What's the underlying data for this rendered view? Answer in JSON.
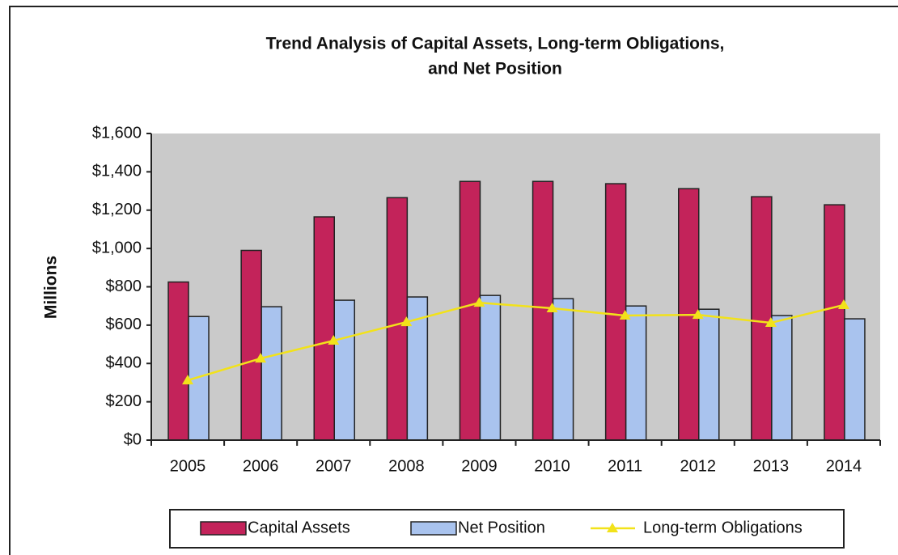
{
  "chart_data": {
    "type": "bar_line",
    "title": [
      "Trend Analysis of Capital Assets,  Long-term Obligations,",
      "and Net Position"
    ],
    "y_label": "Millions",
    "categories": [
      "2005",
      "2006",
      "2007",
      "2008",
      "2009",
      "2010",
      "2011",
      "2012",
      "2013",
      "2014"
    ],
    "series": [
      {
        "name": "Capital Assets",
        "type": "bar",
        "color": "#c3235a",
        "values": [
          825,
          990,
          1165,
          1265,
          1350,
          1350,
          1338,
          1312,
          1270,
          1228
        ]
      },
      {
        "name": "Net Position",
        "type": "bar",
        "color": "#a9c3ee",
        "values": [
          645,
          696,
          730,
          747,
          755,
          738,
          700,
          683,
          650,
          633
        ]
      },
      {
        "name": "Long-term Obligations",
        "type": "line",
        "color": "#f2e21a",
        "values": [
          312,
          426,
          519,
          616,
          717,
          688,
          650,
          654,
          612,
          705
        ]
      }
    ],
    "ylim": [
      0,
      1600
    ],
    "yticks": [
      {
        "value": 0,
        "label": "$0"
      },
      {
        "value": 200,
        "label": "$200"
      },
      {
        "value": 400,
        "label": "$400"
      },
      {
        "value": 600,
        "label": "$600"
      },
      {
        "value": 800,
        "label": "$800"
      },
      {
        "value": 1000,
        "label": "$1,000"
      },
      {
        "value": 1200,
        "label": "$1,200"
      },
      {
        "value": 1400,
        "label": "$1,400"
      },
      {
        "value": 1600,
        "label": "$1,600"
      }
    ],
    "grid": false,
    "legend": "bottom"
  }
}
